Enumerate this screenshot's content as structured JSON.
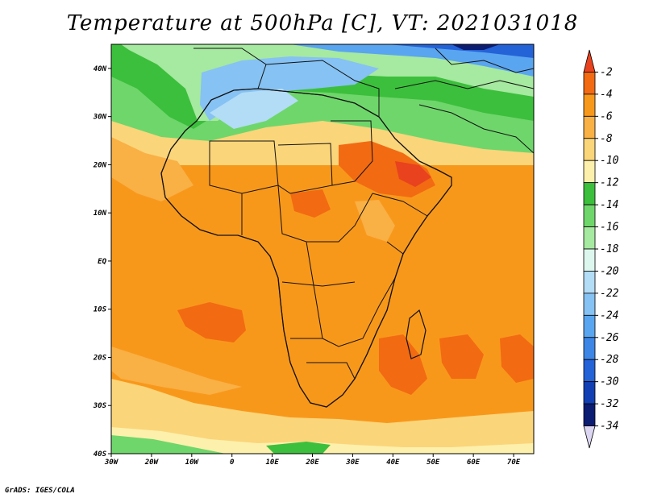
{
  "title": "Temperature at 500hPa [C], VT: 2021031018",
  "footer": "GrADS: IGES/COLA",
  "chart_data": {
    "type": "heatmap",
    "title": "Temperature at 500hPa [C], VT: 2021031018",
    "x_ticks": [
      "30W",
      "20W",
      "10W",
      "0",
      "10E",
      "20E",
      "30E",
      "40E",
      "50E",
      "60E",
      "70E"
    ],
    "y_ticks": [
      "40N",
      "30N",
      "20N",
      "10N",
      "EQ",
      "10S",
      "20S",
      "30S",
      "40S"
    ],
    "lon_range": [
      -30,
      75
    ],
    "lat_range": [
      -40,
      45
    ],
    "colorbar": {
      "levels": [
        "-2",
        "-4",
        "-6",
        "-8",
        "-10",
        "-12",
        "-14",
        "-16",
        "-18",
        "-20",
        "-22",
        "-24",
        "-26",
        "-28",
        "-30",
        "-32",
        "-34"
      ],
      "colors": [
        "#e8421e",
        "#f26a12",
        "#f8981b",
        "#f9b045",
        "#fbd57a",
        "#fdf0ac",
        "#3cbf3c",
        "#6fd66b",
        "#a6e9a0",
        "#ddf6ee",
        "#b3dcf6",
        "#86c2f3",
        "#5aa5ef",
        "#3d86e6",
        "#2462d8",
        "#1240b4",
        "#0b1c73",
        "#dcd6f2"
      ]
    }
  }
}
